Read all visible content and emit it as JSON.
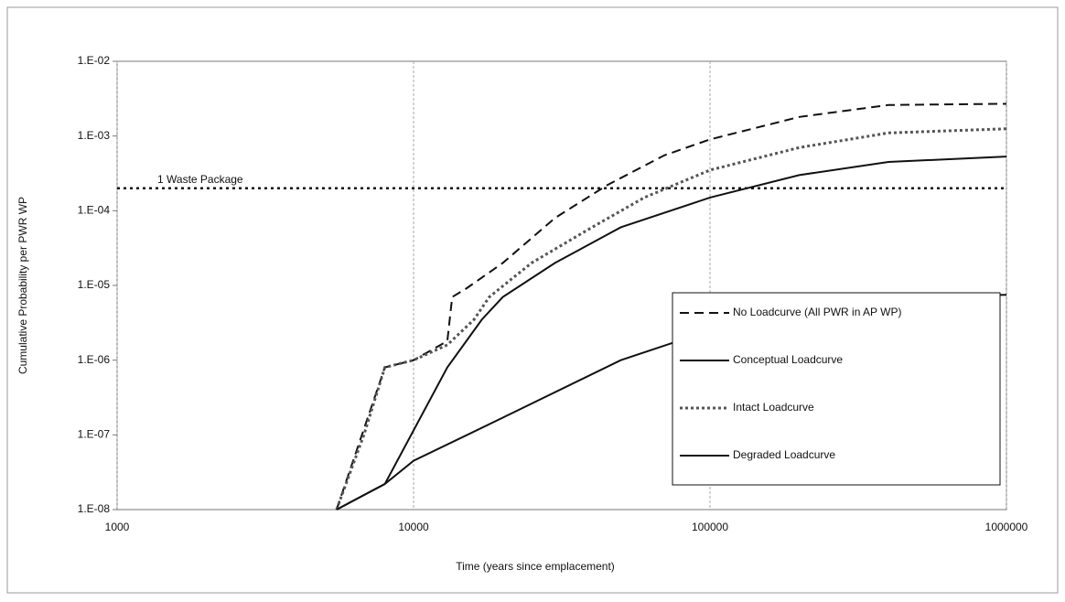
{
  "chart_data": {
    "type": "line",
    "xlabel": "Time (years since emplacement)",
    "ylabel": "Cumulative Probability per PWR WP",
    "log_x": true,
    "log_y": true,
    "grid": "x",
    "legend": "lower right",
    "xlim": [
      1000,
      1000000
    ],
    "xticks": [
      1000,
      10000,
      100000,
      1000000
    ],
    "ylim": [
      1e-08,
      0.01
    ],
    "yticks": [
      {
        "value": 1e-08,
        "label": "1.E-08"
      },
      {
        "value": 1e-07,
        "label": "1.E-07"
      },
      {
        "value": 1e-06,
        "label": "1.E-06"
      },
      {
        "value": 1e-05,
        "label": "1.E-05"
      },
      {
        "value": 0.0001,
        "label": "1.E-04"
      },
      {
        "value": 0.001,
        "label": "1.E-03"
      },
      {
        "value": 0.01,
        "label": "1.E-02"
      }
    ],
    "reference_line": {
      "label": "1 Waste Package",
      "value": 0.0002
    },
    "series": [
      {
        "name": "No Loadcurve (All PWR in AP WP)",
        "color": "#111111",
        "style": "dashed",
        "x": [
          5500,
          8000,
          10000,
          13000,
          13500,
          15000,
          20000,
          30000,
          45000,
          70000,
          100000,
          200000,
          400000,
          1000000
        ],
        "values": [
          1e-08,
          8e-07,
          1e-06,
          1.8e-06,
          7e-06,
          9e-06,
          2e-05,
          8e-05,
          0.00022,
          0.00055,
          0.0009,
          0.0018,
          0.0026,
          0.0027
        ]
      },
      {
        "name": "Conceptual Loadcurve",
        "color": "#111111",
        "style": "solid",
        "x": [
          5500,
          8000,
          13000,
          17000,
          20000,
          30000,
          50000,
          100000,
          200000,
          400000,
          1000000
        ],
        "values": [
          1e-08,
          2.2e-08,
          8e-07,
          3.5e-06,
          7e-06,
          2e-05,
          6e-05,
          0.00015,
          0.0003,
          0.00045,
          0.00053
        ]
      },
      {
        "name": "Intact Loadcurve",
        "color": "#555555",
        "style": "dotted",
        "x": [
          5500,
          6800,
          8000,
          10000,
          13000,
          16000,
          18000,
          25000,
          40000,
          60000,
          100000,
          200000,
          400000,
          1000000
        ],
        "values": [
          1e-08,
          1e-07,
          8e-07,
          1e-06,
          1.6e-06,
          3.5e-06,
          7e-06,
          2e-05,
          6e-05,
          0.00015,
          0.00035,
          0.0007,
          0.0011,
          0.00125
        ]
      },
      {
        "name": "Degraded Loadcurve",
        "color": "#111111",
        "style": "solid",
        "x": [
          5500,
          8000,
          10000,
          20000,
          50000,
          100000,
          200000,
          400000,
          1000000
        ],
        "values": [
          1e-08,
          2.2e-08,
          4.5e-08,
          1.7e-07,
          1e-06,
          2.5e-06,
          5e-06,
          7e-06,
          7.5e-06
        ]
      }
    ]
  }
}
